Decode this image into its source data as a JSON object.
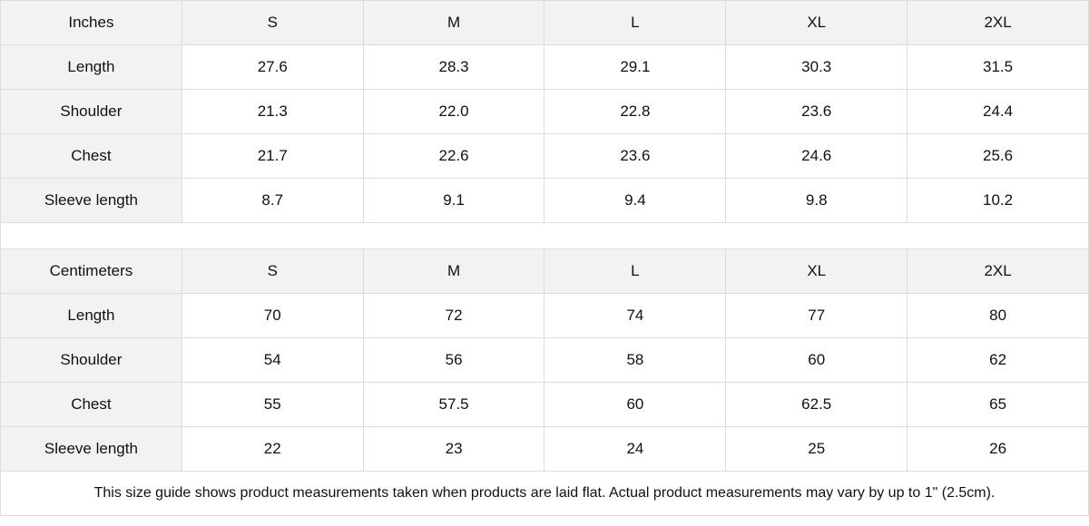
{
  "tables": [
    {
      "unit": "Inches",
      "sizes": [
        "S",
        "M",
        "L",
        "XL",
        "2XL"
      ],
      "rows": [
        {
          "label": "Length",
          "values": [
            "27.6",
            "28.3",
            "29.1",
            "30.3",
            "31.5"
          ]
        },
        {
          "label": "Shoulder",
          "values": [
            "21.3",
            "22.0",
            "22.8",
            "23.6",
            "24.4"
          ]
        },
        {
          "label": "Chest",
          "values": [
            "21.7",
            "22.6",
            "23.6",
            "24.6",
            "25.6"
          ]
        },
        {
          "label": "Sleeve length",
          "values": [
            "8.7",
            "9.1",
            "9.4",
            "9.8",
            "10.2"
          ]
        }
      ]
    },
    {
      "unit": "Centimeters",
      "sizes": [
        "S",
        "M",
        "L",
        "XL",
        "2XL"
      ],
      "rows": [
        {
          "label": "Length",
          "values": [
            "70",
            "72",
            "74",
            "77",
            "80"
          ]
        },
        {
          "label": "Shoulder",
          "values": [
            "54",
            "56",
            "58",
            "60",
            "62"
          ]
        },
        {
          "label": "Chest",
          "values": [
            "55",
            "57.5",
            "60",
            "62.5",
            "65"
          ]
        },
        {
          "label": "Sleeve length",
          "values": [
            "22",
            "23",
            "24",
            "25",
            "26"
          ]
        }
      ]
    }
  ],
  "footnote": "This size guide shows product measurements taken when products are laid flat.  Actual product measurements may vary by up to 1\" (2.5cm)."
}
